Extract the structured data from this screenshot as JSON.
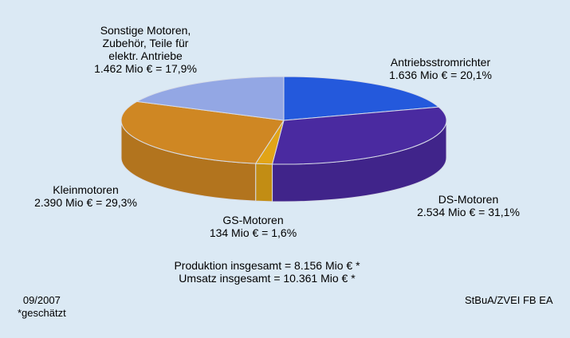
{
  "chart_data": {
    "type": "pie",
    "style": "3d",
    "title": "",
    "unit": "Mio €",
    "slices": [
      {
        "name": "Antriebsstromrichter",
        "value": 1636,
        "value_label": "1.636 Mio € = 20,1%",
        "percent": 20.1,
        "color": "#2459dc"
      },
      {
        "name": "DS-Motoren",
        "value": 2534,
        "value_label": "2.534 Mio € = 31,1%",
        "percent": 31.1,
        "color": "#4a2aa0"
      },
      {
        "name": "GS-Motoren",
        "value": 134,
        "value_label": "134 Mio € = 1,6%",
        "percent": 1.6,
        "color": "#e1a417"
      },
      {
        "name": "Kleinmotoren",
        "value": 2390,
        "value_label": "2.390 Mio € = 29,3%",
        "percent": 29.3,
        "color": "#cf8723"
      },
      {
        "name_lines": [
          "Sonstige Motoren,",
          "Zubehör, Teile für",
          "elektr. Antriebe"
        ],
        "value": 1462,
        "value_label": "1.462 Mio € = 17,9%",
        "percent": 17.9,
        "color": "#93a7e4"
      }
    ],
    "totals": [
      "Produktion insgesamt = 8.156 Mio € *",
      "Umsatz insgesamt = 10.361 Mio € *"
    ]
  },
  "footer": {
    "date": "09/2007",
    "note": "*geschätzt",
    "source": "StBuA/ZVEI FB EA"
  }
}
